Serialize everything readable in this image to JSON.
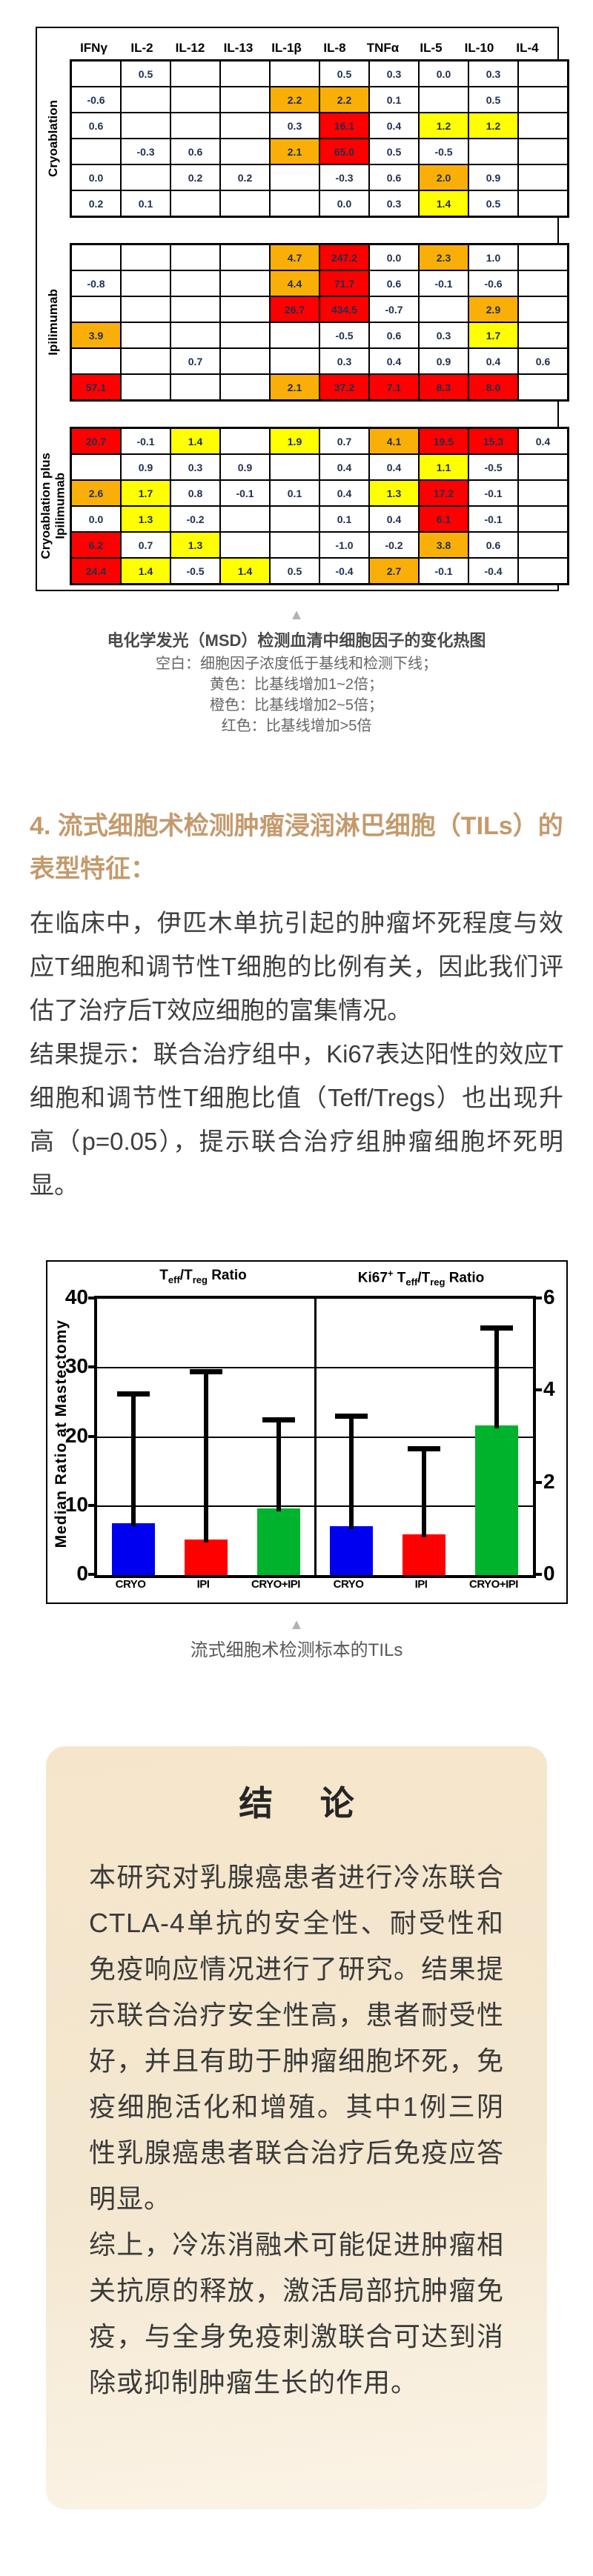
{
  "colors": {
    "accent_heading": "#C49A6C",
    "cell_yellow": "#FFFF00",
    "cell_orange": "#FAAF08",
    "cell_red": "#FF0000",
    "bar_blue": "#0000F0",
    "bar_red": "#FF0000",
    "bar_green": "#00B32C",
    "conclusion_bg": "#F5E7CE",
    "triangle_gray": "#B3B3B3"
  },
  "heatmap": {
    "columns": [
      "IFNγ",
      "IL-2",
      "IL-12",
      "IL-13",
      "IL-1β",
      "IL-8",
      "TNFα",
      "IL-5",
      "IL-10",
      "IL-4"
    ],
    "groups": [
      {
        "label": "Cryoablation",
        "rows": [
          [
            [
              "",
              "w"
            ],
            [
              "0.5",
              "w"
            ],
            [
              "",
              "w"
            ],
            [
              "",
              "w"
            ],
            [
              "",
              "w"
            ],
            [
              "0.5",
              "w"
            ],
            [
              "0.3",
              "w"
            ],
            [
              "0.0",
              "w"
            ],
            [
              "0.3",
              "w"
            ],
            [
              "",
              "w"
            ]
          ],
          [
            [
              "-0.6",
              "w"
            ],
            [
              "",
              "w"
            ],
            [
              "",
              "w"
            ],
            [
              "",
              "w"
            ],
            [
              "2.2",
              "o"
            ],
            [
              "2.2",
              "o"
            ],
            [
              "0.1",
              "w"
            ],
            [
              "",
              "w"
            ],
            [
              "0.5",
              "w"
            ],
            [
              "",
              "w"
            ]
          ],
          [
            [
              "0.6",
              "w"
            ],
            [
              "",
              "w"
            ],
            [
              "",
              "w"
            ],
            [
              "",
              "w"
            ],
            [
              "0.3",
              "w"
            ],
            [
              "16.1",
              "r"
            ],
            [
              "0.4",
              "w"
            ],
            [
              "1.2",
              "y"
            ],
            [
              "1.2",
              "y"
            ],
            [
              "",
              "w"
            ]
          ],
          [
            [
              "",
              "w"
            ],
            [
              "-0.3",
              "w"
            ],
            [
              "0.6",
              "w"
            ],
            [
              "",
              "w"
            ],
            [
              "2.1",
              "o"
            ],
            [
              "65.0",
              "r"
            ],
            [
              "0.5",
              "w"
            ],
            [
              "-0.5",
              "w"
            ],
            [
              "",
              "w"
            ],
            [
              "",
              "w"
            ]
          ],
          [
            [
              "0.0",
              "w"
            ],
            [
              "",
              "w"
            ],
            [
              "0.2",
              "w"
            ],
            [
              "0.2",
              "w"
            ],
            [
              "",
              "w"
            ],
            [
              "-0.3",
              "w"
            ],
            [
              "0.6",
              "w"
            ],
            [
              "2.0",
              "o"
            ],
            [
              "0.9",
              "w"
            ],
            [
              "",
              "w"
            ]
          ],
          [
            [
              "0.2",
              "w"
            ],
            [
              "0.1",
              "w"
            ],
            [
              "",
              "w"
            ],
            [
              "",
              "w"
            ],
            [
              "",
              "w"
            ],
            [
              "0.0",
              "w"
            ],
            [
              "0.3",
              "w"
            ],
            [
              "1.4",
              "y"
            ],
            [
              "0.5",
              "w"
            ],
            [
              "",
              "w"
            ]
          ]
        ]
      },
      {
        "label": "Ipilimumab",
        "rows": [
          [
            [
              "",
              "w"
            ],
            [
              "",
              "w"
            ],
            [
              "",
              "w"
            ],
            [
              "",
              "w"
            ],
            [
              "4.7",
              "o"
            ],
            [
              "247.2",
              "r"
            ],
            [
              "0.0",
              "w"
            ],
            [
              "2.3",
              "o"
            ],
            [
              "1.0",
              "w"
            ],
            [
              "",
              "w"
            ]
          ],
          [
            [
              "-0.8",
              "w"
            ],
            [
              "",
              "w"
            ],
            [
              "",
              "w"
            ],
            [
              "",
              "w"
            ],
            [
              "4.4",
              "o"
            ],
            [
              "71.7",
              "r"
            ],
            [
              "0.6",
              "w"
            ],
            [
              "-0.1",
              "w"
            ],
            [
              "-0.6",
              "w"
            ],
            [
              "",
              "w"
            ]
          ],
          [
            [
              "",
              "w"
            ],
            [
              "",
              "w"
            ],
            [
              "",
              "w"
            ],
            [
              "",
              "w"
            ],
            [
              "26.7",
              "r"
            ],
            [
              "434.5",
              "r"
            ],
            [
              "-0.7",
              "w"
            ],
            [
              "",
              "w"
            ],
            [
              "2.9",
              "o"
            ],
            [
              "",
              "w"
            ]
          ],
          [
            [
              "3.9",
              "o"
            ],
            [
              "",
              "w"
            ],
            [
              "",
              "w"
            ],
            [
              "",
              "w"
            ],
            [
              "",
              "w"
            ],
            [
              "-0.5",
              "w"
            ],
            [
              "0.6",
              "w"
            ],
            [
              "0.3",
              "w"
            ],
            [
              "1.7",
              "y"
            ],
            [
              "",
              "w"
            ]
          ],
          [
            [
              "",
              "w"
            ],
            [
              "",
              "w"
            ],
            [
              "0.7",
              "w"
            ],
            [
              "",
              "w"
            ],
            [
              "",
              "w"
            ],
            [
              "0.3",
              "w"
            ],
            [
              "0.4",
              "w"
            ],
            [
              "0.9",
              "w"
            ],
            [
              "0.4",
              "w"
            ],
            [
              "0.6",
              "w"
            ]
          ],
          [
            [
              "57.1",
              "r"
            ],
            [
              "",
              "w"
            ],
            [
              "",
              "w"
            ],
            [
              "",
              "w"
            ],
            [
              "2.1",
              "o"
            ],
            [
              "37.2",
              "r"
            ],
            [
              "7.1",
              "r"
            ],
            [
              "8.3",
              "r"
            ],
            [
              "8.0",
              "r"
            ],
            [
              "",
              "w"
            ]
          ]
        ]
      },
      {
        "label": "Cryoablation plus\nIpilimumab",
        "rows": [
          [
            [
              "20.7",
              "r"
            ],
            [
              "-0.1",
              "w"
            ],
            [
              "1.4",
              "y"
            ],
            [
              "",
              "w"
            ],
            [
              "1.9",
              "y"
            ],
            [
              "0.7",
              "w"
            ],
            [
              "4.1",
              "o"
            ],
            [
              "19.5",
              "r"
            ],
            [
              "15.3",
              "r"
            ],
            [
              "0.4",
              "w"
            ]
          ],
          [
            [
              "",
              "w"
            ],
            [
              "0.9",
              "w"
            ],
            [
              "0.3",
              "w"
            ],
            [
              "0.9",
              "w"
            ],
            [
              "",
              "w"
            ],
            [
              "0.4",
              "w"
            ],
            [
              "0.4",
              "w"
            ],
            [
              "1.1",
              "y"
            ],
            [
              "-0.5",
              "w"
            ],
            [
              "",
              "w"
            ]
          ],
          [
            [
              "2.6",
              "o"
            ],
            [
              "1.7",
              "y"
            ],
            [
              "0.8",
              "w"
            ],
            [
              "-0.1",
              "w"
            ],
            [
              "0.1",
              "w"
            ],
            [
              "0.4",
              "w"
            ],
            [
              "1.3",
              "y"
            ],
            [
              "17.2",
              "r"
            ],
            [
              "-0.1",
              "w"
            ],
            [
              "",
              "w"
            ]
          ],
          [
            [
              "0.0",
              "w"
            ],
            [
              "1.3",
              "y"
            ],
            [
              "-0.2",
              "w"
            ],
            [
              "",
              "w"
            ],
            [
              "",
              "w"
            ],
            [
              "0.1",
              "w"
            ],
            [
              "0.4",
              "w"
            ],
            [
              "6.1",
              "r"
            ],
            [
              "-0.1",
              "w"
            ],
            [
              "",
              "w"
            ]
          ],
          [
            [
              "6.2",
              "r"
            ],
            [
              "0.7",
              "w"
            ],
            [
              "1.3",
              "y"
            ],
            [
              "",
              "w"
            ],
            [
              "",
              "w"
            ],
            [
              "-1.0",
              "w"
            ],
            [
              "-0.2",
              "w"
            ],
            [
              "3.8",
              "o"
            ],
            [
              "0.6",
              "w"
            ],
            [
              "",
              "w"
            ]
          ],
          [
            [
              "24.4",
              "r"
            ],
            [
              "1.4",
              "y"
            ],
            [
              "-0.5",
              "w"
            ],
            [
              "1.4",
              "y"
            ],
            [
              "0.5",
              "w"
            ],
            [
              "-0.4",
              "w"
            ],
            [
              "2.7",
              "o"
            ],
            [
              "-0.1",
              "w"
            ],
            [
              "-0.4",
              "w"
            ],
            [
              "",
              "w"
            ]
          ]
        ]
      }
    ]
  },
  "heatmap_caption": {
    "marker": "▲",
    "title": "电化学发光（MSD）检测血清中细胞因子的变化热图",
    "lines": [
      "空白：细胞因子浓度低于基线和检测下线；",
      "黄色：比基线增加1~2倍；",
      "橙色：比基线增加2~5倍；",
      "红色：比基线增加>5倍"
    ]
  },
  "section": {
    "heading": "4. 流式细胞术检测肿瘤浸润淋巴细胞（TILs）的表型特征：",
    "paragraphs": [
      "在临床中，伊匹木单抗引起的肿瘤坏死程度与效应T细胞和调节性T细胞的比例有关，因此我们评估了治疗后T效应细胞的富集情况。",
      "结果提示：联合治疗组中，Ki67表达阳性的效应T细胞和调节性T细胞比值（Teff/Tregs）也出现升高（p=0.05），提示联合治疗组肿瘤细胞坏死明显。"
    ]
  },
  "chart_data": {
    "type": "bar",
    "ylabel": "Median Ratio at Mastectomy",
    "left_axis": {
      "min": 0,
      "max": 40,
      "ticks": [
        0,
        10,
        20,
        30,
        40
      ]
    },
    "right_axis": {
      "min": 0,
      "max": 6,
      "ticks": [
        0,
        2,
        4,
        6
      ]
    },
    "grid_values": [
      10,
      20,
      30
    ],
    "legend_position": "none",
    "panels": [
      {
        "title": "Teff/Treg Ratio",
        "title_runs": [
          [
            "T",
            "n"
          ],
          [
            "eff",
            "sub"
          ],
          [
            "/T",
            "n"
          ],
          [
            "reg",
            "sub"
          ],
          [
            " Ratio",
            "n"
          ]
        ],
        "axis": "left",
        "categories": [
          "CRYO",
          "IPI",
          "CRYO+IPI"
        ],
        "bar_colors": [
          "#0000F0",
          "#FF0000",
          "#00B32C"
        ],
        "values": [
          7.5,
          5.2,
          9.6
        ],
        "error_tops": [
          26.2,
          29.4,
          22.4
        ]
      },
      {
        "title": "Ki67+ Teff/Treg Ratio",
        "title_runs": [
          [
            "Ki67",
            "n"
          ],
          [
            "+",
            "sup"
          ],
          [
            " T",
            "n"
          ],
          [
            "eff",
            "sub"
          ],
          [
            "/T",
            "n"
          ],
          [
            "reg",
            "sub"
          ],
          [
            " Ratio",
            "n"
          ]
        ],
        "axis": "right",
        "categories": [
          "CRYO",
          "IPI",
          "CRYO+IPI"
        ],
        "bar_colors": [
          "#0000F0",
          "#FF0000",
          "#00B32C"
        ],
        "values": [
          7.1,
          5.9,
          21.7
        ],
        "error_tops": [
          23.0,
          18.2,
          35.7
        ],
        "values_right_axis": [
          1.07,
          0.89,
          3.26
        ],
        "error_tops_right_axis": [
          3.45,
          2.73,
          5.36
        ]
      }
    ]
  },
  "chart_caption": {
    "marker": "▲",
    "text": "流式细胞术检测标本的TILs"
  },
  "conclusion": {
    "title": "结 论",
    "paragraphs": [
      "本研究对乳腺癌患者进行冷冻联合CTLA-4单抗的安全性、耐受性和免疫响应情况进行了研究。结果提示联合治疗安全性高，患者耐受性好，并且有助于肿瘤细胞坏死，免疫细胞活化和增殖。其中1例三阴性乳腺癌患者联合治疗后免疫应答明显。",
      "综上，冷冻消融术可能促进肿瘤相关抗原的释放，激活局部抗肿瘤免疫，与全身免疫刺激联合可达到消除或抑制肿瘤生长的作用。"
    ]
  }
}
